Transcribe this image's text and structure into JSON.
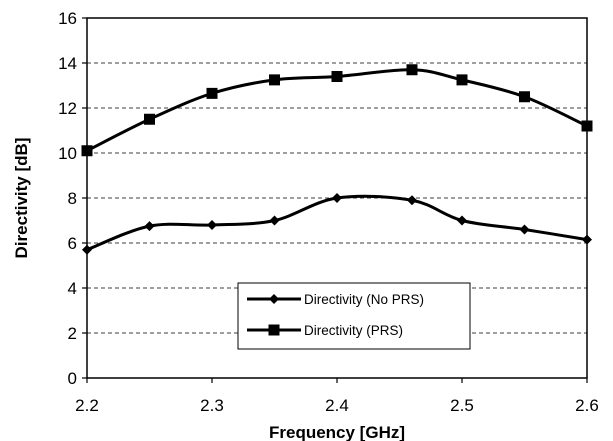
{
  "chart_data": {
    "type": "line",
    "xlabel": "Frequency [GHz]",
    "ylabel": "Directivity [dB]",
    "xlim": [
      2.2,
      2.6
    ],
    "ylim": [
      0,
      16
    ],
    "xticks": [
      "2.2",
      "2.3",
      "2.4",
      "2.5",
      "2.6"
    ],
    "yticks": [
      "0",
      "2",
      "4",
      "6",
      "8",
      "10",
      "12",
      "14",
      "16"
    ],
    "grid": "horizontal dashed",
    "legend_position": "bottom-center",
    "series": [
      {
        "name": "Directivity (No PRS)",
        "marker": "diamond",
        "x": [
          2.2,
          2.25,
          2.3,
          2.35,
          2.4,
          2.46,
          2.5,
          2.55,
          2.6
        ],
        "y": [
          5.7,
          6.75,
          6.8,
          7.0,
          8.0,
          7.9,
          7.0,
          6.6,
          6.15
        ]
      },
      {
        "name": "Directivity (PRS)",
        "marker": "square",
        "x": [
          2.2,
          2.25,
          2.3,
          2.35,
          2.4,
          2.46,
          2.5,
          2.55,
          2.6
        ],
        "y": [
          10.1,
          11.5,
          12.65,
          13.25,
          13.4,
          13.7,
          13.25,
          12.5,
          11.2
        ]
      }
    ]
  }
}
